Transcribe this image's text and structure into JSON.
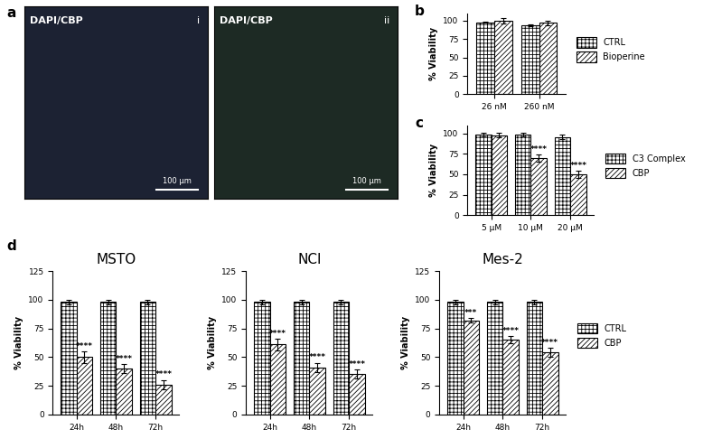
{
  "figure": {
    "panel": "a",
    "images": [
      {
        "caption": "DAPI/CBP",
        "label": "i",
        "scale_bar": "100 μm"
      },
      {
        "caption": "DAPI/CBP",
        "label": "ii",
        "scale_bar": "100 μm"
      }
    ]
  },
  "chart_data": [
    {
      "panel": "b",
      "type": "bar",
      "y_label": "% Viability",
      "categories": [
        "26 nM",
        "260 nM"
      ],
      "ylim": [
        0,
        110
      ],
      "yticks": [
        0,
        25,
        50,
        75,
        100
      ],
      "legend": "right",
      "series": [
        {
          "name": "CTRL",
          "color": "#ffffff",
          "values": [
            98,
            94
          ],
          "errors": [
            1,
            1
          ]
        },
        {
          "name": "Bioperine",
          "color": "#ffffff",
          "values": [
            100,
            97
          ],
          "errors": [
            4,
            3
          ]
        }
      ]
    },
    {
      "panel": "c",
      "type": "bar",
      "y_label": "% Viability",
      "categories": [
        "5 μM",
        "10 μM",
        "20 μM"
      ],
      "ylim": [
        0,
        110
      ],
      "yticks": [
        0,
        25,
        50,
        75,
        100
      ],
      "legend": "right",
      "series": [
        {
          "name": "C3 Complex",
          "color": "#ffffff",
          "values": [
            99,
            99,
            96
          ],
          "errors": [
            2,
            2,
            3
          ]
        },
        {
          "name": "CBP",
          "color": "#ffffff",
          "values": [
            98,
            70,
            50
          ],
          "errors": [
            3,
            4,
            4
          ],
          "annotations": [
            null,
            "****",
            "****"
          ]
        }
      ]
    },
    {
      "panel": "d",
      "type": "bar",
      "title": "MSTO",
      "y_label": "% Viability",
      "categories": [
        "24h",
        "48h",
        "72h"
      ],
      "ylim": [
        0,
        125
      ],
      "yticks": [
        0,
        25,
        50,
        75,
        100,
        125
      ],
      "series": [
        {
          "name": "CTRL",
          "color": "#ffffff",
          "values": [
            98,
            98,
            98
          ],
          "errors": [
            2,
            2,
            2
          ]
        },
        {
          "name": "CBP",
          "color": "#ffffff",
          "values": [
            50,
            40,
            26
          ],
          "errors": [
            5,
            4,
            4
          ],
          "annotations": [
            "****",
            "****",
            "****"
          ]
        }
      ]
    },
    {
      "type": "bar",
      "title": "NCI",
      "y_label": "% Viability",
      "categories": [
        "24h",
        "48h",
        "72h"
      ],
      "ylim": [
        0,
        125
      ],
      "yticks": [
        0,
        25,
        50,
        75,
        100,
        125
      ],
      "series": [
        {
          "name": "CTRL",
          "color": "#ffffff",
          "values": [
            98,
            98,
            98
          ],
          "errors": [
            2,
            2,
            2
          ]
        },
        {
          "name": "CBP",
          "color": "#ffffff",
          "values": [
            61,
            41,
            35
          ],
          "errors": [
            5,
            4,
            4
          ],
          "annotations": [
            "****",
            "****",
            "****"
          ]
        }
      ]
    },
    {
      "type": "bar",
      "title": "Mes-2",
      "y_label": "% Viability",
      "categories": [
        "24h",
        "48h",
        "72h"
      ],
      "ylim": [
        0,
        125
      ],
      "yticks": [
        0,
        25,
        50,
        75,
        100,
        125
      ],
      "legend": "right",
      "series": [
        {
          "name": "CTRL",
          "color": "#ffffff",
          "values": [
            98,
            98,
            98
          ],
          "errors": [
            2,
            2,
            2
          ]
        },
        {
          "name": "CBP",
          "color": "#ffffff",
          "values": [
            82,
            65,
            54
          ],
          "errors": [
            2,
            3,
            4
          ],
          "annotations": [
            "***",
            "****",
            "****"
          ]
        }
      ]
    }
  ]
}
